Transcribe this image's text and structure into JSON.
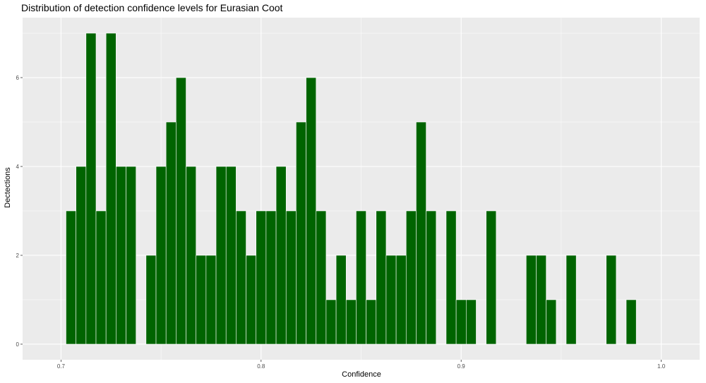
{
  "chart_data": {
    "type": "bar",
    "title": "Distribution of detection confidence levels for Eurasian Coot",
    "xlabel": "Confidence",
    "ylabel": "Dectections",
    "xlim": [
      0.6808,
      1.0192
    ],
    "ylim": [
      -0.35,
      7.35
    ],
    "x_ticks": [
      0.7,
      0.8,
      0.9,
      1.0
    ],
    "x_tick_labels": [
      "0.7",
      "0.8",
      "0.9",
      "1.0"
    ],
    "y_ticks": [
      0,
      2,
      4,
      6
    ],
    "y_tick_labels": [
      "0",
      "2",
      "4",
      "6"
    ],
    "bin_width": 0.005,
    "grid": true,
    "legend": "none",
    "colors": {
      "bar_fill": "#006400",
      "bar_outline": "#ffffff",
      "panel_bg": "#ebebeb",
      "grid": "#ffffff"
    },
    "bins": [
      {
        "x": 0.705,
        "count": 3
      },
      {
        "x": 0.71,
        "count": 4
      },
      {
        "x": 0.715,
        "count": 7
      },
      {
        "x": 0.72,
        "count": 3
      },
      {
        "x": 0.725,
        "count": 7
      },
      {
        "x": 0.73,
        "count": 4
      },
      {
        "x": 0.735,
        "count": 4
      },
      {
        "x": 0.74,
        "count": 0
      },
      {
        "x": 0.745,
        "count": 2
      },
      {
        "x": 0.75,
        "count": 4
      },
      {
        "x": 0.755,
        "count": 5
      },
      {
        "x": 0.76,
        "count": 6
      },
      {
        "x": 0.765,
        "count": 4
      },
      {
        "x": 0.77,
        "count": 2
      },
      {
        "x": 0.775,
        "count": 2
      },
      {
        "x": 0.78,
        "count": 4
      },
      {
        "x": 0.785,
        "count": 4
      },
      {
        "x": 0.79,
        "count": 3
      },
      {
        "x": 0.795,
        "count": 2
      },
      {
        "x": 0.8,
        "count": 3
      },
      {
        "x": 0.805,
        "count": 3
      },
      {
        "x": 0.81,
        "count": 4
      },
      {
        "x": 0.815,
        "count": 3
      },
      {
        "x": 0.82,
        "count": 5
      },
      {
        "x": 0.825,
        "count": 6
      },
      {
        "x": 0.83,
        "count": 3
      },
      {
        "x": 0.835,
        "count": 1
      },
      {
        "x": 0.84,
        "count": 2
      },
      {
        "x": 0.845,
        "count": 1
      },
      {
        "x": 0.85,
        "count": 3
      },
      {
        "x": 0.855,
        "count": 1
      },
      {
        "x": 0.86,
        "count": 3
      },
      {
        "x": 0.865,
        "count": 2
      },
      {
        "x": 0.87,
        "count": 2
      },
      {
        "x": 0.875,
        "count": 3
      },
      {
        "x": 0.88,
        "count": 5
      },
      {
        "x": 0.885,
        "count": 3
      },
      {
        "x": 0.89,
        "count": 0
      },
      {
        "x": 0.895,
        "count": 3
      },
      {
        "x": 0.9,
        "count": 1
      },
      {
        "x": 0.905,
        "count": 1
      },
      {
        "x": 0.91,
        "count": 0
      },
      {
        "x": 0.915,
        "count": 3
      },
      {
        "x": 0.92,
        "count": 0
      },
      {
        "x": 0.925,
        "count": 0
      },
      {
        "x": 0.93,
        "count": 0
      },
      {
        "x": 0.935,
        "count": 2
      },
      {
        "x": 0.94,
        "count": 2
      },
      {
        "x": 0.945,
        "count": 1
      },
      {
        "x": 0.95,
        "count": 0
      },
      {
        "x": 0.955,
        "count": 2
      },
      {
        "x": 0.96,
        "count": 0
      },
      {
        "x": 0.965,
        "count": 0
      },
      {
        "x": 0.97,
        "count": 0
      },
      {
        "x": 0.975,
        "count": 2
      },
      {
        "x": 0.98,
        "count": 0
      },
      {
        "x": 0.985,
        "count": 1
      }
    ]
  }
}
